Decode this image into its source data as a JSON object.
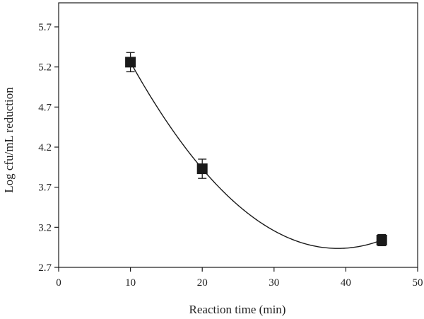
{
  "chart_data": {
    "type": "scatter",
    "xlabel": "Reaction time (min)",
    "ylabel": "Log cfu/mL reduction",
    "xlim": [
      0,
      50
    ],
    "ylim": [
      2.7,
      6.0
    ],
    "x_ticks": [
      0,
      10,
      20,
      30,
      40,
      50
    ],
    "y_ticks": [
      2.7,
      3.2,
      3.7,
      4.2,
      4.7,
      5.2,
      5.7
    ],
    "x_tick_labels": [
      "0",
      "10",
      "20",
      "30",
      "40",
      "50"
    ],
    "y_tick_labels": [
      "2.7",
      "3.2",
      "3.7",
      "4.2",
      "4.7",
      "5.2",
      "5.7"
    ],
    "grid": false,
    "series": [
      {
        "marker": "square",
        "color": "#1a1a1a",
        "points": [
          {
            "x": 10,
            "y": 5.26,
            "err": 0.12
          },
          {
            "x": 20,
            "y": 3.93,
            "err": 0.12
          },
          {
            "x": 45,
            "y": 3.04,
            "err": 0.07
          }
        ]
      }
    ],
    "fit_curve": {
      "type": "quadratic",
      "color": "#1a1a1a",
      "x_range": [
        10,
        45
      ],
      "points": [
        {
          "x": 10,
          "y": 5.26
        },
        {
          "x": 20,
          "y": 3.93
        },
        {
          "x": 45,
          "y": 3.04
        }
      ]
    }
  }
}
